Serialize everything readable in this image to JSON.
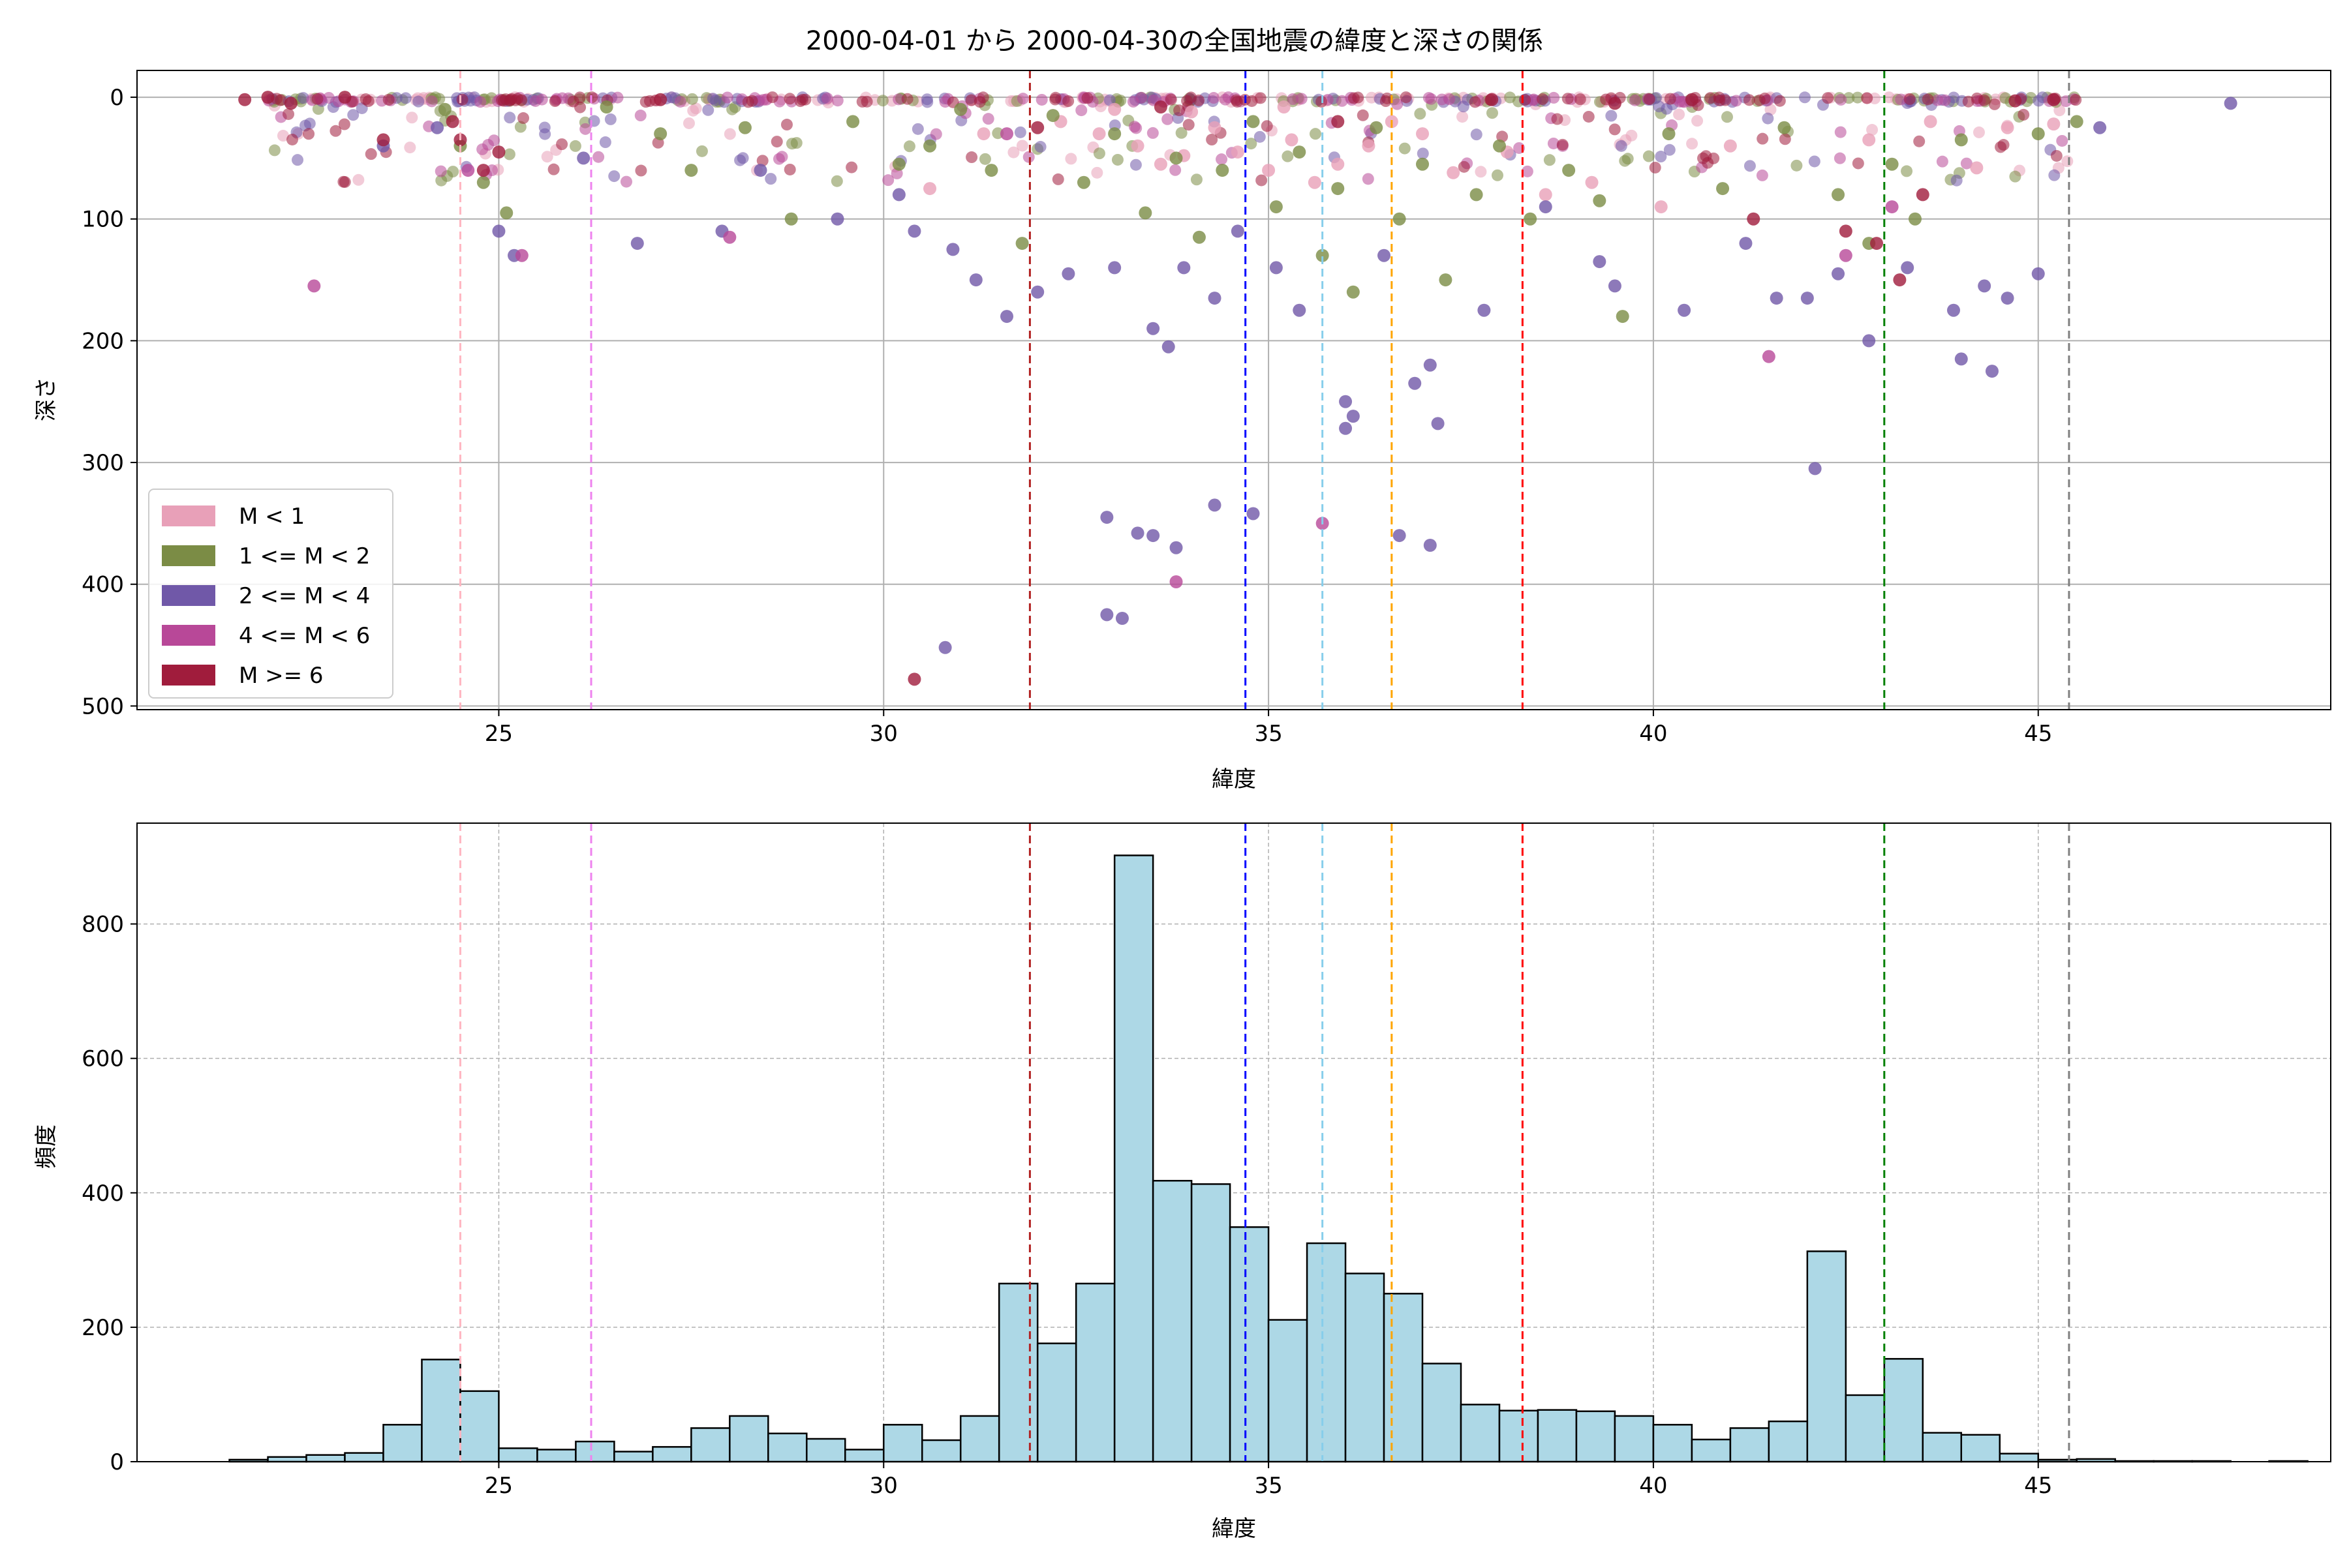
{
  "chart_data": [
    {
      "type": "scatter",
      "title": "2000-04-01 から 2000-04-30の全国地震の緯度と深さの関係",
      "xlabel": "緯度",
      "ylabel": "深さ",
      "xlim": [
        20.3,
        48.8
      ],
      "ylim": [
        503,
        -22
      ],
      "y_inverted": true,
      "grid": true,
      "legend_position": "lower-left",
      "x_ticks": [
        "25",
        "30",
        "35",
        "40",
        "45"
      ],
      "y_ticks": [
        "0",
        "100",
        "200",
        "300",
        "400",
        "500"
      ],
      "series": [
        {
          "name": "M < 1",
          "color": "#e8a0b8",
          "points": [
            [
              32.3,
              20
            ],
            [
              32.8,
              30
            ],
            [
              33.3,
              40
            ],
            [
              33.6,
              55
            ],
            [
              33.9,
              48
            ],
            [
              34.3,
              25
            ],
            [
              34.6,
              45
            ],
            [
              35.0,
              60
            ],
            [
              35.3,
              35
            ],
            [
              35.6,
              70
            ],
            [
              35.9,
              55
            ],
            [
              36.3,
              40
            ],
            [
              36.6,
              20
            ],
            [
              37.0,
              30
            ],
            [
              37.4,
              62
            ],
            [
              38.1,
              45
            ],
            [
              38.6,
              80
            ],
            [
              39.2,
              70
            ],
            [
              40.1,
              90
            ],
            [
              41.0,
              40
            ],
            [
              42.8,
              35
            ],
            [
              43.6,
              20
            ],
            [
              44.2,
              58
            ],
            [
              44.6,
              25
            ],
            [
              45.2,
              22
            ],
            [
              31.3,
              30
            ],
            [
              30.6,
              75
            ],
            [
              33.0,
              10
            ],
            [
              34.0,
              12
            ],
            [
              35.2,
              8
            ]
          ]
        },
        {
          "name": "1 <= M < 2",
          "color": "#7b8c45",
          "points": [
            [
              24.3,
              10
            ],
            [
              24.5,
              40
            ],
            [
              24.8,
              70
            ],
            [
              25.1,
              95
            ],
            [
              26.4,
              8
            ],
            [
              27.1,
              30
            ],
            [
              27.5,
              60
            ],
            [
              28.2,
              25
            ],
            [
              28.8,
              100
            ],
            [
              29.6,
              20
            ],
            [
              30.2,
              55
            ],
            [
              30.6,
              40
            ],
            [
              31.0,
              10
            ],
            [
              31.4,
              60
            ],
            [
              31.8,
              120
            ],
            [
              32.2,
              15
            ],
            [
              32.6,
              70
            ],
            [
              33.0,
              30
            ],
            [
              33.4,
              95
            ],
            [
              33.8,
              50
            ],
            [
              34.1,
              115
            ],
            [
              34.4,
              60
            ],
            [
              34.8,
              20
            ],
            [
              35.1,
              90
            ],
            [
              35.4,
              45
            ],
            [
              35.7,
              130
            ],
            [
              35.9,
              75
            ],
            [
              36.1,
              160
            ],
            [
              36.4,
              25
            ],
            [
              36.7,
              100
            ],
            [
              37.0,
              55
            ],
            [
              37.3,
              150
            ],
            [
              37.7,
              80
            ],
            [
              38.0,
              40
            ],
            [
              38.4,
              100
            ],
            [
              38.9,
              60
            ],
            [
              39.3,
              85
            ],
            [
              39.6,
              180
            ],
            [
              40.2,
              30
            ],
            [
              40.9,
              75
            ],
            [
              41.7,
              25
            ],
            [
              42.4,
              80
            ],
            [
              42.8,
              120
            ],
            [
              43.1,
              55
            ],
            [
              43.4,
              100
            ],
            [
              44.0,
              35
            ],
            [
              45.0,
              30
            ],
            [
              45.5,
              20
            ]
          ]
        },
        {
          "name": "2 <= M < 4",
          "color": "#7058a8",
          "points": [
            [
              23.5,
              40
            ],
            [
              24.2,
              25
            ],
            [
              25.0,
              110
            ],
            [
              25.2,
              130
            ],
            [
              26.1,
              50
            ],
            [
              26.8,
              120
            ],
            [
              27.9,
              110
            ],
            [
              28.4,
              60
            ],
            [
              29.4,
              100
            ],
            [
              30.2,
              80
            ],
            [
              30.4,
              110
            ],
            [
              30.9,
              125
            ],
            [
              31.2,
              150
            ],
            [
              31.6,
              180
            ],
            [
              32.0,
              160
            ],
            [
              32.4,
              145
            ],
            [
              33.0,
              140
            ],
            [
              33.5,
              190
            ],
            [
              33.7,
              205
            ],
            [
              33.9,
              140
            ],
            [
              34.3,
              165
            ],
            [
              34.6,
              110
            ],
            [
              35.1,
              140
            ],
            [
              35.4,
              175
            ],
            [
              36.0,
              250
            ],
            [
              36.1,
              262
            ],
            [
              36.0,
              272
            ],
            [
              36.5,
              130
            ],
            [
              36.9,
              235
            ],
            [
              37.1,
              220
            ],
            [
              37.2,
              268
            ],
            [
              37.8,
              175
            ],
            [
              38.6,
              90
            ],
            [
              39.3,
              135
            ],
            [
              39.5,
              155
            ],
            [
              40.4,
              175
            ],
            [
              41.2,
              120
            ],
            [
              41.6,
              165
            ],
            [
              42.0,
              165
            ],
            [
              42.4,
              145
            ],
            [
              42.8,
              200
            ],
            [
              43.3,
              140
            ],
            [
              43.9,
              175
            ],
            [
              44.0,
              215
            ],
            [
              44.3,
              155
            ],
            [
              44.4,
              225
            ],
            [
              44.6,
              165
            ],
            [
              45.0,
              145
            ],
            [
              45.8,
              25
            ],
            [
              47.5,
              5
            ],
            [
              32.9,
              345
            ],
            [
              33.3,
              358
            ],
            [
              33.5,
              360
            ],
            [
              33.8,
              370
            ],
            [
              34.3,
              335
            ],
            [
              34.8,
              342
            ],
            [
              36.7,
              360
            ],
            [
              37.1,
              368
            ],
            [
              32.9,
              425
            ],
            [
              33.1,
              428
            ],
            [
              30.8,
              452
            ],
            [
              42.1,
              305
            ]
          ]
        },
        {
          "name": "4 <= M < 6",
          "color": "#b84898",
          "points": [
            [
              22.6,
              155
            ],
            [
              25.3,
              130
            ],
            [
              28.0,
              115
            ],
            [
              33.8,
              398
            ],
            [
              35.7,
              350
            ],
            [
              41.5,
              213
            ],
            [
              42.5,
              130
            ],
            [
              43.1,
              90
            ],
            [
              24.6,
              60
            ],
            [
              31.6,
              30
            ]
          ]
        },
        {
          "name": "M >= 6",
          "color": "#a01c3c",
          "points": [
            [
              21.7,
              2
            ],
            [
              22.0,
              0
            ],
            [
              22.3,
              5
            ],
            [
              23.0,
              0
            ],
            [
              23.5,
              35
            ],
            [
              24.4,
              20
            ],
            [
              24.5,
              35
            ],
            [
              24.8,
              60
            ],
            [
              25.0,
              45
            ],
            [
              27.1,
              2
            ],
            [
              30.4,
              478
            ],
            [
              33.6,
              8
            ],
            [
              37.9,
              2
            ],
            [
              39.5,
              5
            ],
            [
              40.5,
              2
            ],
            [
              41.3,
              100
            ],
            [
              42.5,
              110
            ],
            [
              42.9,
              120
            ],
            [
              43.2,
              150
            ],
            [
              43.5,
              80
            ],
            [
              44.7,
              3
            ],
            [
              45.2,
              2
            ],
            [
              32.0,
              25
            ],
            [
              35.9,
              20
            ]
          ]
        }
      ],
      "vlines": [
        {
          "x": 24.5,
          "color": "#ffb6c1"
        },
        {
          "x": 26.2,
          "color": "#ee82ee"
        },
        {
          "x": 31.9,
          "color": "#b22222"
        },
        {
          "x": 34.7,
          "color": "#0000ff"
        },
        {
          "x": 35.7,
          "color": "#87ceeb"
        },
        {
          "x": 36.6,
          "color": "#ffa500"
        },
        {
          "x": 38.3,
          "color": "#ff0000"
        },
        {
          "x": 43.0,
          "color": "#008000"
        },
        {
          "x": 45.4,
          "color": "#808080"
        }
      ]
    },
    {
      "type": "bar",
      "subtype": "histogram",
      "xlabel": "緯度",
      "ylabel": "頻度",
      "xlim": [
        20.3,
        48.8
      ],
      "ylim": [
        0,
        950
      ],
      "grid": true,
      "bar_color": "#add8e6",
      "x_ticks": [
        "25",
        "30",
        "35",
        "40",
        "45"
      ],
      "y_ticks": [
        "0",
        "200",
        "400",
        "600",
        "800"
      ],
      "bin_start": 21.5,
      "bin_width": 0.5,
      "values": [
        3,
        7,
        10,
        13,
        55,
        152,
        105,
        20,
        18,
        30,
        15,
        22,
        50,
        68,
        42,
        34,
        18,
        55,
        32,
        68,
        265,
        176,
        265,
        902,
        418,
        413,
        349,
        211,
        325,
        280,
        250,
        146,
        85,
        76,
        77,
        75,
        68,
        55,
        33,
        50,
        60,
        313,
        99,
        153,
        43,
        40,
        12,
        3,
        4,
        1,
        1,
        1,
        0,
        1
      ]
    }
  ]
}
